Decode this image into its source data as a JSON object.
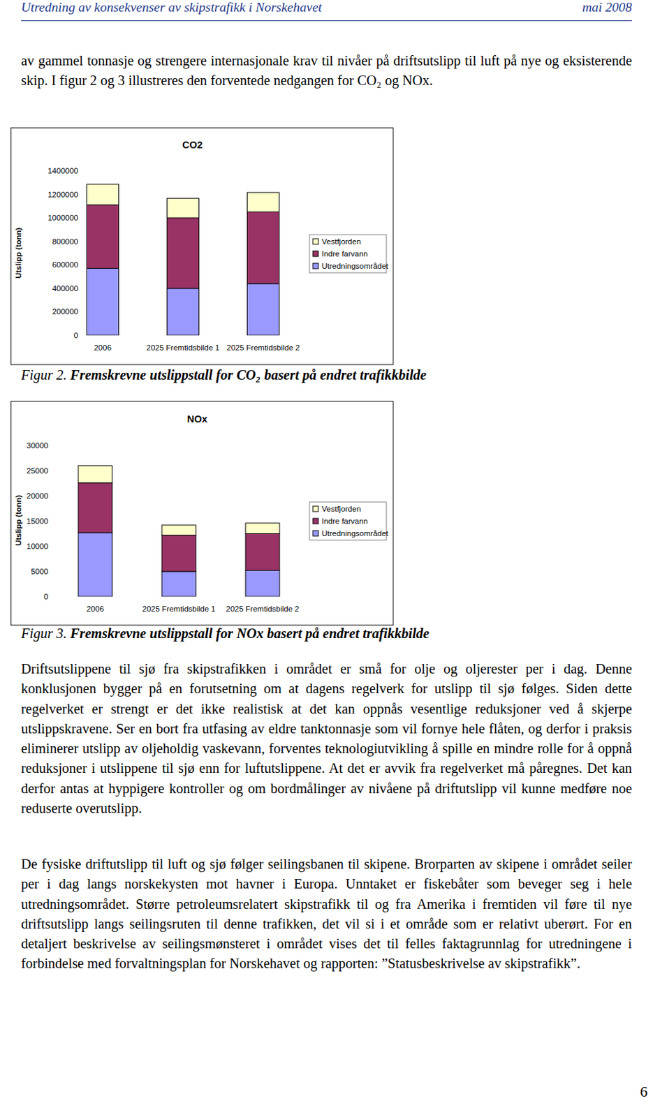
{
  "header": {
    "title": "Utredning av konsekvenser av skipstrafikk i Norskehavet",
    "date": "mai 2008"
  },
  "intro": "av gammel tonnasje og strengere internasjonale krav til nivåer på driftsutslipp til luft på nye og eksisterende skip. I figur 2 og 3 illustreres den forventede nedgangen for CO₂ og NOx.",
  "captions": [
    {
      "label": "Figur 2.",
      "text": "Fremskrevne utslippstall for CO₂ basert på endret trafikkbilde"
    },
    {
      "label": "Figur 3.",
      "text": "Fremskrevne utslippstall for NOx basert på endret trafikkbilde"
    }
  ],
  "paragraphs": [
    "Driftsutslippene til sjø fra skipstrafikken i området er små for olje og oljerester per i dag. Denne konklusjonen bygger på en forutsetning om at dagens regelverk for utslipp til sjø følges. Siden dette regelverket er strengt er det ikke realistisk at det kan oppnås vesentlige reduksjoner ved å skjerpe utslippskravene. Ser en bort fra utfasing av eldre tanktonnasje som vil fornye hele flåten, og derfor i praksis eliminerer utslipp av oljeholdig vaskevann, forventes teknologiutvikling å spille en mindre rolle for å oppnå reduksjoner i utslippene til sjø enn for luftutslippene. At det er avvik fra regelverket må påregnes. Det kan derfor antas at hyppigere kontroller og om bordmålinger av nivåene på driftutslipp vil kunne medføre noe reduserte overutslipp.",
    "De fysiske driftutslipp til luft og sjø følger seilingsbanen til skipene. Brorparten av skipene i området seiler per i dag langs norskekysten mot havner i Europa. Unntaket er fiskebåter som beveger seg i hele utredningsområdet. Større petroleumsrelatert skipstrafikk til og fra Amerika i fremtiden vil føre til nye driftsutslipp langs seilingsruten til denne trafikken, det vil si i et område som er relativt uberørt. For en detaljert beskrivelse av seilingsmønsteret i området vises det til felles faktagrunnlag for utredningene i forbindelse med forvaltningsplan for Norskehavet og rapporten: ”Statusbeskrivelse av skipstrafikk”."
  ],
  "page_number": 6,
  "chart_data": [
    {
      "type": "bar",
      "title": "CO2",
      "y_label": "Utslipp (tonn)",
      "stacked": true,
      "grid": false,
      "legend": "right",
      "categories": [
        "2006",
        "2025 Fremtidsbilde 1",
        "2025 Fremtidsbilde 2"
      ],
      "series": [
        {
          "name": "Utredningsområdet",
          "color": "#9999ff",
          "values": [
            570000,
            400000,
            440000
          ]
        },
        {
          "name": "Indre farvann",
          "color": "#993366",
          "values": [
            540000,
            600000,
            610000
          ]
        },
        {
          "name": "Vestfjorden",
          "color": "#ffffcc",
          "values": [
            175000,
            165000,
            165000
          ]
        }
      ],
      "ylim": [
        0,
        1400000
      ],
      "yticks": [
        0,
        200000,
        400000,
        600000,
        800000,
        1000000,
        1200000,
        1400000
      ]
    },
    {
      "type": "bar",
      "title": "NOx",
      "y_label": "Utslipp (tonn)",
      "stacked": true,
      "grid": false,
      "legend": "right",
      "categories": [
        "2006",
        "2025 Fremtidsbilde 1",
        "2025 Fremtidsbilde 2"
      ],
      "series": [
        {
          "name": "Utredningsområdet",
          "color": "#9999ff",
          "values": [
            12700,
            5000,
            5200
          ]
        },
        {
          "name": "Indre farvann",
          "color": "#993366",
          "values": [
            9900,
            7200,
            7300
          ]
        },
        {
          "name": "Vestfjorden",
          "color": "#ffffcc",
          "values": [
            3400,
            2000,
            2100
          ]
        }
      ],
      "ylim": [
        0,
        30000
      ],
      "yticks": [
        0,
        5000,
        10000,
        15000,
        20000,
        25000,
        30000
      ]
    }
  ]
}
